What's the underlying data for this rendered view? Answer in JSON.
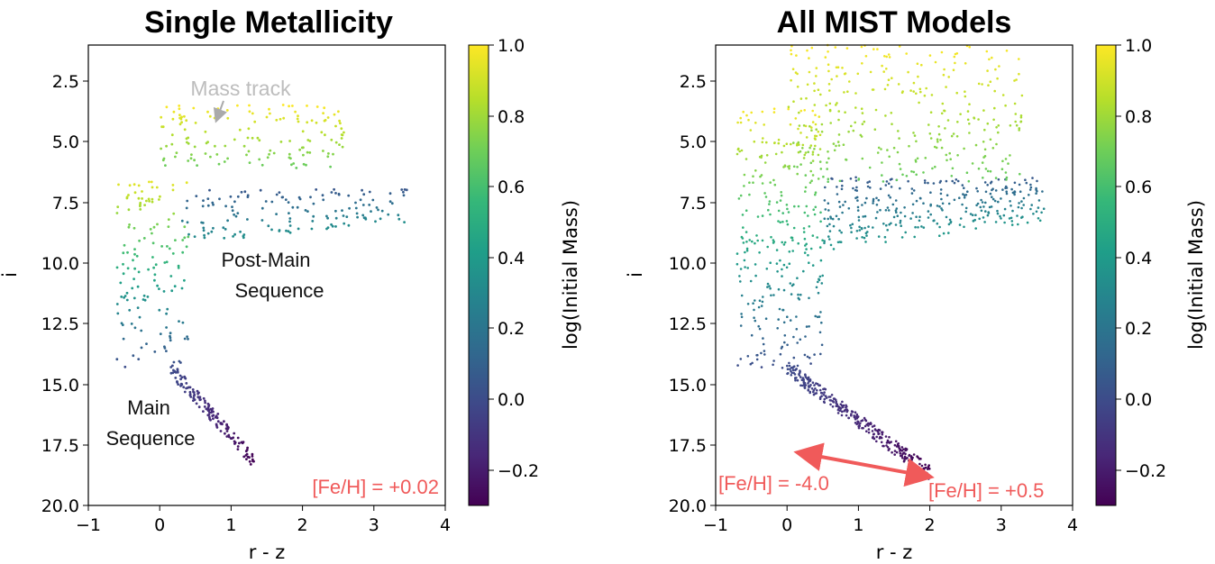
{
  "colormap": [
    "#440154",
    "#482878",
    "#3e4989",
    "#31688e",
    "#26828e",
    "#1f9e89",
    "#35b779",
    "#6ece58",
    "#b5de2b",
    "#fde725"
  ],
  "chart_data": [
    {
      "type": "scatter",
      "title": "Single Metallicity",
      "xlabel": "r - z",
      "ylabel": "i",
      "xlim": [
        -1,
        4
      ],
      "ylim": [
        20.0,
        1.5
      ],
      "y_inverted": true,
      "xticks": [
        "−1",
        "0",
        "1",
        "2",
        "3",
        "4"
      ],
      "yticks": [
        "2.5",
        "5.0",
        "7.5",
        "10.0",
        "12.5",
        "15.0",
        "17.5",
        "20.0"
      ],
      "colorbar": {
        "label": "log(Initial Mass)",
        "range": [
          -0.3,
          1.0
        ],
        "ticks": [
          "−0.2",
          "0.0",
          "0.2",
          "0.4",
          "0.6",
          "0.8",
          "1.0"
        ]
      },
      "annotations": {
        "mass_track": "Mass track",
        "post_ms_1": "Post-Main",
        "post_ms_2": "Sequence",
        "ms_1": "Main",
        "ms_2": "Sequence",
        "feh": "[Fe/H] = +0.02"
      },
      "regions": [
        {
          "name": "main-sequence",
          "x": [
            0.15,
            1.35
          ],
          "y": [
            14.5,
            18.3
          ],
          "logmass": [
            -0.3,
            0.0
          ]
        },
        {
          "name": "upper-ms",
          "x": [
            -0.6,
            0.4
          ],
          "y": [
            7.0,
            14.5
          ],
          "logmass": [
            0.0,
            0.95
          ]
        },
        {
          "name": "giant-branch",
          "x": [
            0.3,
            3.5
          ],
          "y": [
            7.3,
            9.5
          ],
          "logmass": [
            0.05,
            0.35
          ]
        },
        {
          "name": "supergiants",
          "x": [
            0.0,
            2.6
          ],
          "y": [
            3.9,
            6.5
          ],
          "logmass": [
            0.6,
            1.0
          ]
        }
      ]
    },
    {
      "type": "scatter",
      "title": "All MIST Models",
      "xlabel": "r - z",
      "ylabel": "i",
      "xlim": [
        -1,
        4
      ],
      "ylim": [
        20.0,
        1.5
      ],
      "y_inverted": true,
      "xticks": [
        "−1",
        "0",
        "1",
        "2",
        "3",
        "4"
      ],
      "yticks": [
        "2.5",
        "5.0",
        "7.5",
        "10.0",
        "12.5",
        "15.0",
        "17.5",
        "20.0"
      ],
      "colorbar": {
        "label": "log(Initial Mass)",
        "range": [
          -0.3,
          1.0
        ],
        "ticks": [
          "−0.2",
          "0.0",
          "0.2",
          "0.4",
          "0.6",
          "0.8",
          "1.0"
        ]
      },
      "annotations": {
        "feh_low": "[Fe/H] = -4.0",
        "feh_high": "[Fe/H] = +0.5"
      },
      "regions": [
        {
          "name": "main-sequence",
          "x": [
            0.0,
            2.0
          ],
          "y": [
            14.5,
            18.7
          ],
          "logmass": [
            -0.3,
            0.0
          ]
        },
        {
          "name": "upper-ms",
          "x": [
            -0.7,
            0.5
          ],
          "y": [
            4.0,
            14.5
          ],
          "logmass": [
            0.0,
            1.0
          ]
        },
        {
          "name": "giant-branch",
          "x": [
            0.5,
            3.6
          ],
          "y": [
            6.8,
            9.8
          ],
          "logmass": [
            0.05,
            0.4
          ]
        },
        {
          "name": "supergiants",
          "x": [
            0.0,
            3.3
          ],
          "y": [
            1.5,
            7.0
          ],
          "logmass": [
            0.6,
            1.0
          ]
        }
      ]
    }
  ]
}
